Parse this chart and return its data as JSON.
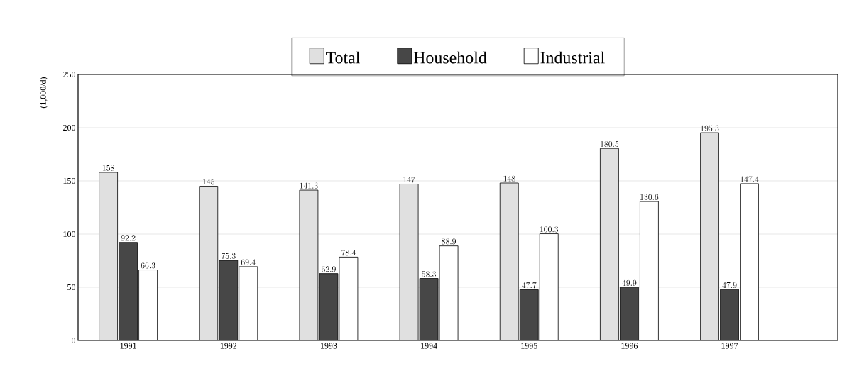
{
  "chart_data": {
    "type": "bar",
    "ylabel": "(1,000/d)",
    "categories": [
      "1991",
      "1992",
      "1993",
      "1994",
      "1995",
      "1996",
      "1997"
    ],
    "series": [
      {
        "name": "Total",
        "color": "#e0e0e0",
        "values": [
          158,
          145,
          141.3,
          147,
          148,
          180.5,
          195.3
        ]
      },
      {
        "name": "Household",
        "color": "#474747",
        "values": [
          92.2,
          75.3,
          62.9,
          58.3,
          47.7,
          49.9,
          47.9
        ]
      },
      {
        "name": "Industrial",
        "color": "#ffffff",
        "values": [
          66.3,
          69.4,
          78.4,
          88.9,
          100.3,
          130.6,
          147.4
        ]
      }
    ],
    "ylim": [
      0,
      250
    ],
    "yticks": [
      0,
      50,
      100,
      150,
      200,
      250
    ],
    "grid": "y",
    "legend": "top",
    "data_labels": true
  }
}
